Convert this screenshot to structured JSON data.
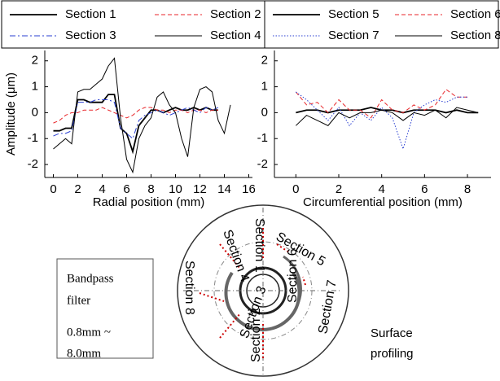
{
  "chart_data": [
    {
      "type": "line",
      "xlabel": "Radial position (mm)",
      "ylabel": "Amplitude (μm)",
      "x": [
        0,
        0.5,
        1,
        1.5,
        2,
        2.5,
        3,
        3.5,
        4,
        4.5,
        5,
        5.5,
        6,
        6.5,
        7,
        7.5,
        8,
        8.5,
        9,
        9.5,
        10,
        10.5,
        11,
        11.5,
        12,
        12.5,
        13,
        13.5,
        14,
        14.5
      ],
      "xlim": [
        -0.7,
        16.3
      ],
      "xticks": [
        0,
        2,
        4,
        6,
        8,
        10,
        12,
        14,
        16
      ],
      "ylim": [
        -2.5,
        2.4
      ],
      "yticks": [
        -2,
        -1,
        0,
        1,
        2
      ],
      "series": [
        {
          "name": "Section 1",
          "color": "#000000",
          "dash": "solid",
          "width": 1.8,
          "values": [
            -0.7,
            -0.7,
            -0.6,
            -0.6,
            0.5,
            0.5,
            0.4,
            0.4,
            0.4,
            0.7,
            0.7,
            -0.6,
            -0.8,
            -1.5,
            -0.5,
            -0.2,
            0.1,
            0.1,
            0,
            0.1,
            0.2,
            0.1,
            0.1,
            0.2,
            0.1,
            0.2,
            0.1,
            0.1,
            null,
            null
          ]
        },
        {
          "name": "Section 2",
          "color": "#e8262a",
          "dash": "dashed",
          "width": 1,
          "values": [
            -0.4,
            -0.3,
            -0.1,
            0,
            0,
            0.1,
            0.1,
            0.1,
            0.2,
            0.1,
            0,
            -0.1,
            -0.2,
            -0.1,
            0.1,
            0.2,
            0.2,
            0.1,
            0.1,
            0,
            0.1,
            0.1,
            0,
            0.1,
            0.1,
            0,
            0.1,
            0.1,
            null,
            null
          ]
        },
        {
          "name": "Section 3",
          "color": "#2a3fd1",
          "dash": "dashdot",
          "width": 1,
          "values": [
            -0.9,
            -0.8,
            -0.8,
            -0.7,
            0.4,
            0.4,
            0.4,
            0.5,
            0.5,
            0.5,
            0.4,
            -0.6,
            -0.8,
            -1.0,
            -0.3,
            -0.1,
            0,
            0.1,
            0,
            -0.1,
            0,
            0.1,
            0.2,
            0.1,
            0,
            0.2,
            0.1,
            0.2,
            null,
            null
          ]
        },
        {
          "name": "Section 4",
          "color": "#000000",
          "dash": "solid",
          "width": 1,
          "values": [
            -1.4,
            -1.2,
            -1.0,
            -1.2,
            0.8,
            0.9,
            0.9,
            1.1,
            1.3,
            1.8,
            2.1,
            -0.2,
            -1.8,
            -2.3,
            -1.0,
            -0.5,
            -0.2,
            0.6,
            0.8,
            0.3,
            0,
            -1.0,
            -1.7,
            0.2,
            0.9,
            1.0,
            0.8,
            -0.3,
            -0.8,
            0.3
          ]
        }
      ]
    },
    {
      "type": "line",
      "xlabel": "Circumferential position (mm)",
      "x": [
        0,
        0.5,
        1,
        1.5,
        2,
        2.5,
        3,
        3.5,
        4,
        4.5,
        5,
        5.5,
        6,
        6.5,
        7,
        7.5,
        8,
        8.5
      ],
      "xlim": [
        -1.0,
        9.1
      ],
      "xticks": [
        0,
        2,
        4,
        6,
        8
      ],
      "ylim": [
        -2.5,
        2.4
      ],
      "yticks": [
        -2,
        -1,
        0,
        1,
        2
      ],
      "series": [
        {
          "name": "Section 5",
          "color": "#000000",
          "dash": "solid",
          "width": 1.8,
          "values": [
            0,
            0.1,
            0.1,
            0,
            0.1,
            0.1,
            0.1,
            0.2,
            0.1,
            0.1,
            0,
            0.1,
            0.1,
            0.1,
            0,
            0.1,
            0,
            0
          ]
        },
        {
          "name": "Section 6",
          "color": "#e8262a",
          "dash": "dashed",
          "width": 1,
          "values": [
            0.8,
            0.3,
            0.4,
            0,
            0.5,
            0.1,
            0.1,
            -0.2,
            0.5,
            0.1,
            0,
            0.3,
            0.1,
            0.3,
            0.9,
            0.6,
            0.6,
            null
          ]
        },
        {
          "name": "Section 7",
          "color": "#2a3fd1",
          "dash": "dotted",
          "width": 1,
          "values": [
            0.8,
            0.5,
            0.1,
            -0.3,
            0.2,
            -0.5,
            0,
            -0.3,
            0.2,
            -0.2,
            -1.4,
            0,
            0.3,
            0.5,
            0.4,
            0.6,
            0.6,
            null
          ]
        },
        {
          "name": "Section 8",
          "color": "#000000",
          "dash": "solid",
          "width": 1,
          "values": [
            -0.5,
            -0.1,
            -0.3,
            -0.5,
            0,
            -0.2,
            0,
            0,
            0.1,
            0,
            -0.3,
            0,
            -0.1,
            0.1,
            -0.2,
            0.2,
            0.1,
            0
          ]
        }
      ]
    }
  ],
  "diagram": {
    "filter_box": [
      "Bandpass",
      "filter",
      "0.8mm ~",
      "8.0mm"
    ],
    "note": [
      "Surface",
      "profiling"
    ],
    "sections": [
      "Section 1",
      "Section 2",
      "Section 3",
      "Section 4",
      "Section 5",
      "Section 6",
      "Section 7",
      "Section 8"
    ]
  }
}
